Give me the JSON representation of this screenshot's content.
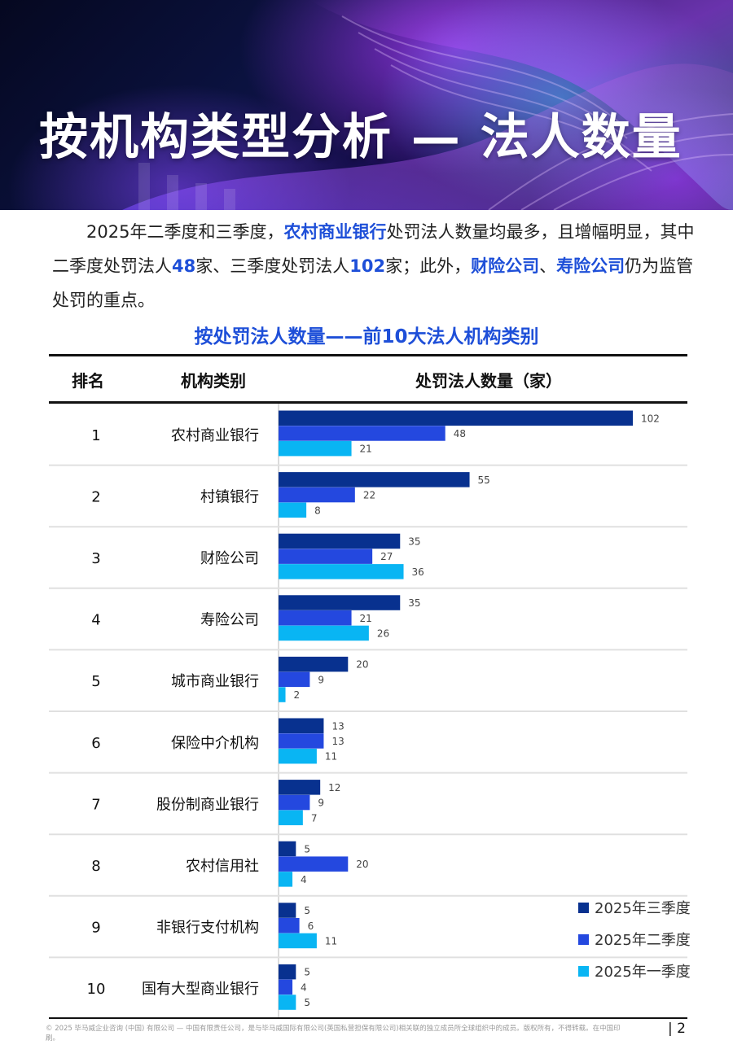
{
  "header": {
    "title": "按机构类型分析 — 法人数量"
  },
  "intro": {
    "parts": [
      {
        "text": "2025年二季度和三季度，",
        "hl": false
      },
      {
        "text": "农村商业银行",
        "hl": true
      },
      {
        "text": "处罚法人数量均最多，且增幅明显，其中二季度处罚法人",
        "hl": false
      },
      {
        "text": "48",
        "hl": true
      },
      {
        "text": "家、三季度处罚法人",
        "hl": false
      },
      {
        "text": "102",
        "hl": true
      },
      {
        "text": "家；此外，",
        "hl": false
      },
      {
        "text": "财险公司",
        "hl": true
      },
      {
        "text": "、",
        "hl": false
      },
      {
        "text": "寿险公司",
        "hl": true
      },
      {
        "text": "仍为监管处罚的重点。",
        "hl": false
      }
    ]
  },
  "chart_title": "按处罚法人数量——前10大法人机构类别",
  "table_headers": {
    "rank": "排名",
    "category": "机构类别",
    "count": "处罚法人数量（家）"
  },
  "colors": {
    "q3": "#08318f",
    "q2": "#2448df",
    "q1": "#09b5f3",
    "accent": "#1e4fd8"
  },
  "chart_data": {
    "type": "bar",
    "orientation": "horizontal",
    "title": "按处罚法人数量——前10大法人机构类别",
    "ylabel": "处罚法人数量（家）",
    "rank": [
      "1",
      "2",
      "3",
      "4",
      "5",
      "6",
      "7",
      "8",
      "9",
      "10"
    ],
    "categories": [
      "农村商业银行",
      "村镇银行",
      "财险公司",
      "寿险公司",
      "城市商业银行",
      "保险中介机构",
      "股份制商业银行",
      "农村信用社",
      "非银行支付机构",
      "国有大型商业银行"
    ],
    "series": [
      {
        "name": "2025年三季度",
        "values": [
          102,
          55,
          35,
          35,
          20,
          13,
          12,
          5,
          5,
          5
        ]
      },
      {
        "name": "2025年二季度",
        "values": [
          48,
          22,
          27,
          21,
          9,
          13,
          9,
          20,
          6,
          4
        ]
      },
      {
        "name": "2025年一季度",
        "values": [
          21,
          8,
          36,
          26,
          2,
          11,
          7,
          4,
          11,
          5
        ]
      }
    ],
    "xlim": [
      0,
      102
    ],
    "legend_position": "bottom-right",
    "data_labels": true
  },
  "footer": {
    "note": "© 2025 毕马威企业咨询 (中国) 有限公司 — 中国有限责任公司，是与毕马威国际有限公司(英国私营担保有限公司)相关联的独立成员所全球组织中的成员。版权所有，不得转载。在中国印刷。",
    "page": "| 2"
  }
}
